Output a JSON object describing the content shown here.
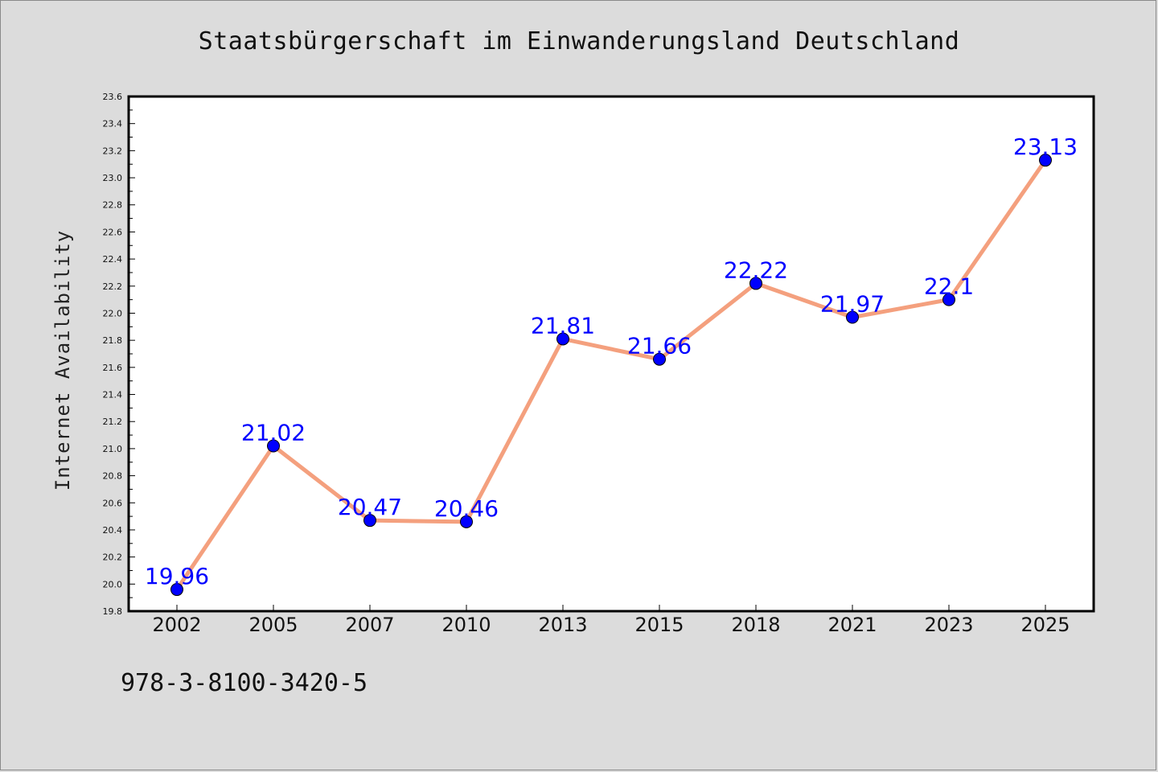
{
  "chart_data": {
    "type": "line",
    "title": "Staatsbürgerschaft im Einwanderungsland Deutschland",
    "xlabel": "",
    "ylabel": "Internet Availability",
    "categories": [
      "2002",
      "2005",
      "2007",
      "2010",
      "2013",
      "2015",
      "2018",
      "2021",
      "2023",
      "2025"
    ],
    "values": [
      19.96,
      21.02,
      20.47,
      20.46,
      21.81,
      21.66,
      22.22,
      21.97,
      22.1,
      23.13
    ],
    "data_labels": [
      "19.96",
      "21.02",
      "20.47",
      "20.46",
      "21.81",
      "21.66",
      "22.22",
      "21.97",
      "22.1",
      "23.13"
    ],
    "ylim": [
      19.8,
      23.6
    ],
    "yticks": [
      "19.8",
      "20.0",
      "20.2",
      "20.4",
      "20.6",
      "20.8",
      "21.0",
      "21.2",
      "21.4",
      "21.6",
      "21.8",
      "22.0",
      "22.2",
      "22.4",
      "22.6",
      "22.8",
      "23.0",
      "23.2",
      "23.4",
      "23.6"
    ],
    "grid": false,
    "legend": "none",
    "colors": {
      "line": "#f4a07e",
      "marker": "#0000ff",
      "label": "#0000ff",
      "plot_bg": "#ffffff",
      "page_bg": "#dcdcdc"
    }
  },
  "footnote": "978-3-8100-3420-5"
}
